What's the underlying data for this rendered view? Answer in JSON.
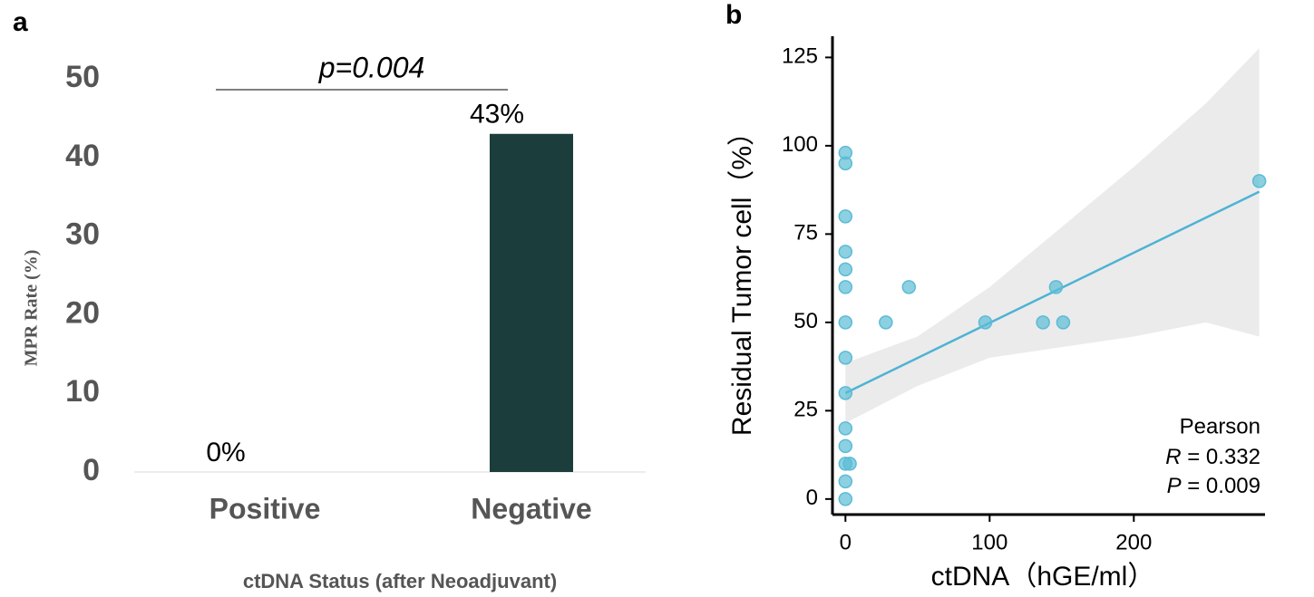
{
  "chart_data": [
    {
      "type": "bar",
      "panel": "a",
      "annotation": "p=0.004",
      "categories": [
        "Positive",
        "Negative"
      ],
      "values": [
        0,
        43
      ],
      "value_labels": [
        "0%",
        "43%"
      ],
      "color": "#1b3d3b",
      "ylim": [
        0,
        50
      ],
      "yticks": [
        0,
        10,
        20,
        30,
        40,
        50
      ],
      "x_label": "ctDNA Status (after Neoadjuvant)",
      "y_label": "MPR Rate (%)"
    },
    {
      "type": "scatter",
      "panel": "b",
      "x": [
        0,
        0,
        0,
        0,
        0,
        0,
        0,
        0,
        0,
        0,
        0,
        0,
        0,
        0,
        3,
        44,
        28,
        97,
        137,
        146,
        151,
        287
      ],
      "values": [
        98,
        95,
        80,
        70,
        65,
        60,
        50,
        40,
        30,
        20,
        15,
        10,
        5,
        0,
        10,
        60,
        50,
        50,
        50,
        60,
        50,
        90
      ],
      "color": "#5bbcd6",
      "fit": {
        "x": [
          0,
          287
        ],
        "y": [
          30,
          87
        ],
        "color": "#4db3d4"
      },
      "band": {
        "x": [
          0,
          50,
          100,
          150,
          200,
          250,
          287
        ],
        "lower": [
          21.5,
          32,
          40,
          43,
          46,
          50,
          46
        ],
        "upper": [
          38.5,
          46,
          60,
          77,
          94,
          112,
          127.6
        ],
        "color": "#ebebeb"
      },
      "xlim": [
        -9,
        291
      ],
      "xticks": [
        0,
        100,
        200
      ],
      "ylim": [
        -4.4,
        131
      ],
      "yticks": [
        0,
        25,
        50,
        75,
        100,
        125
      ],
      "x_label": "ctDNA（hGE/ml）",
      "y_label": "Residual Tumor cell（%）",
      "stats": {
        "title": "Pearson",
        "lines": [
          {
            "symbol": "R",
            "text": " = 0.332"
          },
          {
            "symbol": "P",
            "text": " = 0.009"
          }
        ]
      }
    }
  ]
}
